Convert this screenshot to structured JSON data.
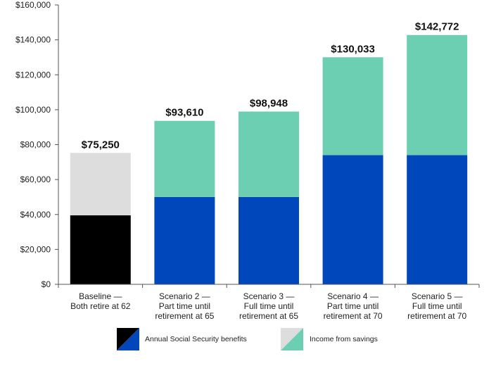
{
  "chart_data": {
    "type": "bar",
    "stacked": true,
    "categories": [
      [
        "Baseline —",
        "Both retire at 62"
      ],
      [
        "Scenario 2 —",
        "Part time until",
        "retirement at 65"
      ],
      [
        "Scenario 3 —",
        "Full time until",
        "retirement at 65"
      ],
      [
        "Scenario 4 —",
        "Part time until",
        "retirement at 70"
      ],
      [
        "Scenario 5 —",
        "Full time until",
        "retirement at 70"
      ]
    ],
    "series": [
      {
        "name": "Annual Social Security benefits",
        "values": [
          39500,
          50000,
          50000,
          74000,
          74000
        ]
      },
      {
        "name": "Income from savings",
        "values": [
          35750,
          43610,
          48948,
          56033,
          68772
        ]
      }
    ],
    "totals": [
      "$75,250",
      "$93,610",
      "$98,948",
      "$130,033",
      "$142,772"
    ],
    "ylim": [
      0,
      160000
    ],
    "yticks": [
      "$0",
      "$20,000",
      "$40,000",
      "$60,000",
      "$80,000",
      "$100,000",
      "$120,000",
      "$140,000",
      "$160,000"
    ],
    "grid": false,
    "legend_position": "bottom",
    "colors": {
      "baseline_benefits": "#000000",
      "baseline_savings": "#dddddd",
      "benefits": "#0047bb",
      "savings": "#6dcfb1",
      "axis": "#555555"
    }
  }
}
